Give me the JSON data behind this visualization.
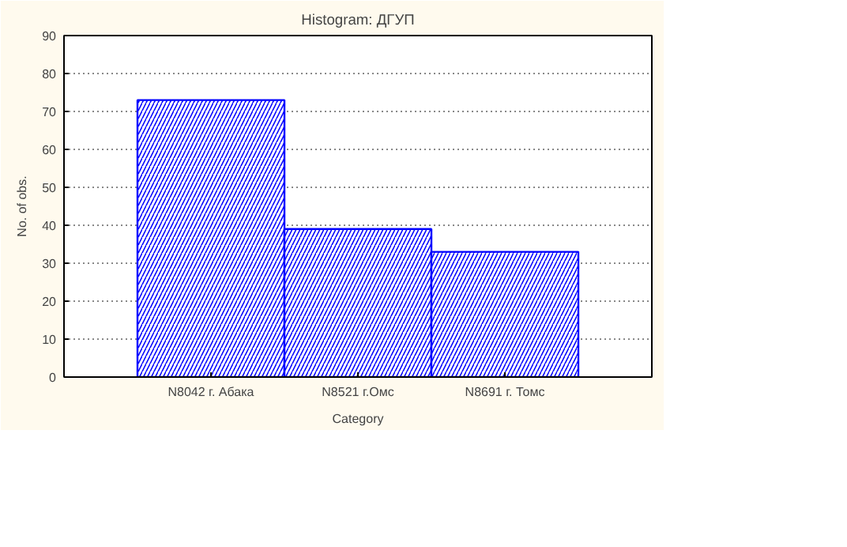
{
  "chart_data": {
    "type": "bar",
    "title": "Histogram: ДГУП",
    "xlabel": "Category",
    "ylabel": "No. of obs.",
    "categories": [
      "N8042 г. Абака",
      "N8521 г.Омс",
      "N8691 г. Томс"
    ],
    "values": [
      73,
      39,
      33
    ],
    "color": "#0000ff",
    "ylim": [
      0,
      90
    ],
    "yticks": [
      0,
      10,
      20,
      30,
      40,
      50,
      60,
      70,
      80,
      90
    ],
    "grid": "y"
  }
}
